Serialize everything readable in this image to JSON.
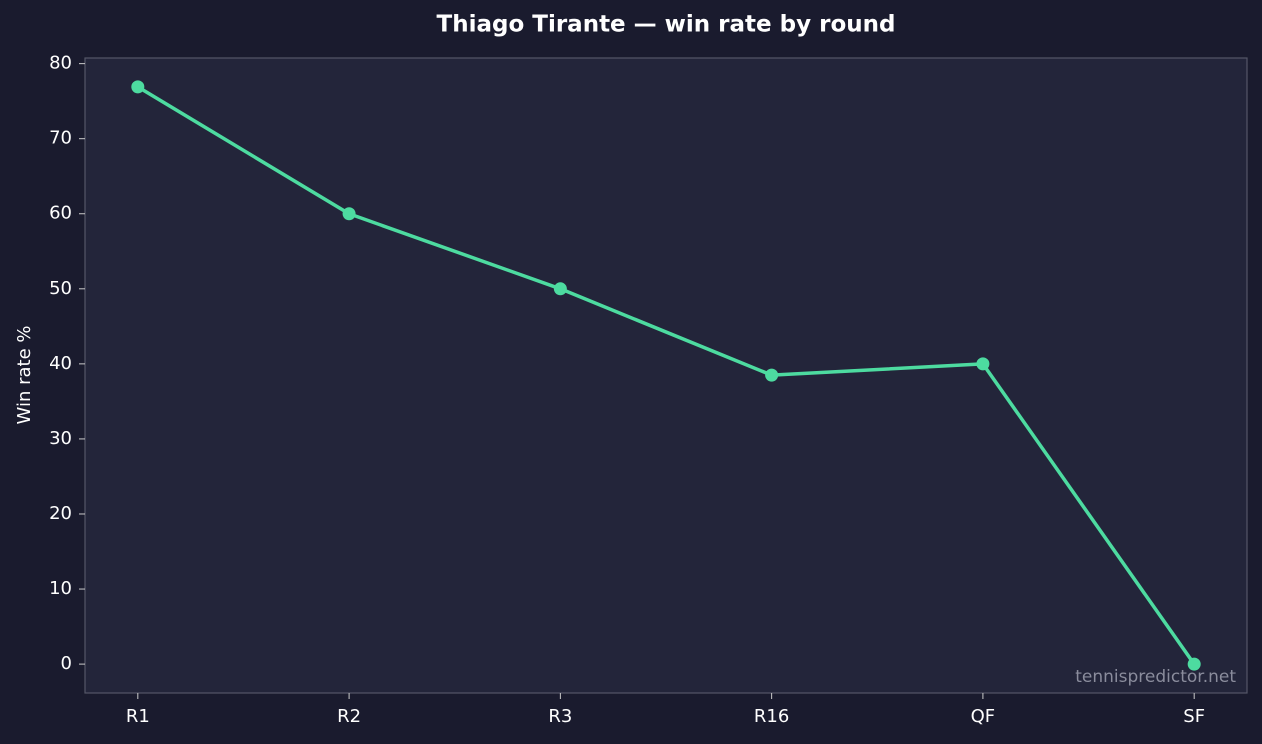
{
  "chart_data": {
    "type": "line",
    "title": "Thiago Tirante — win rate by round",
    "ylabel": "Win rate %",
    "categories": [
      "R1",
      "R2",
      "R3",
      "R16",
      "QF",
      "SF"
    ],
    "series": [
      {
        "name": "Win rate",
        "color": "#4ddba0",
        "values": [
          76.9,
          60,
          50,
          38.5,
          40,
          0
        ]
      }
    ],
    "ylim": [
      -3.85,
      80.75
    ],
    "yticks": [
      0,
      10,
      20,
      30,
      40,
      50,
      60,
      70,
      80
    ],
    "watermark": "tennispredictor.net"
  }
}
